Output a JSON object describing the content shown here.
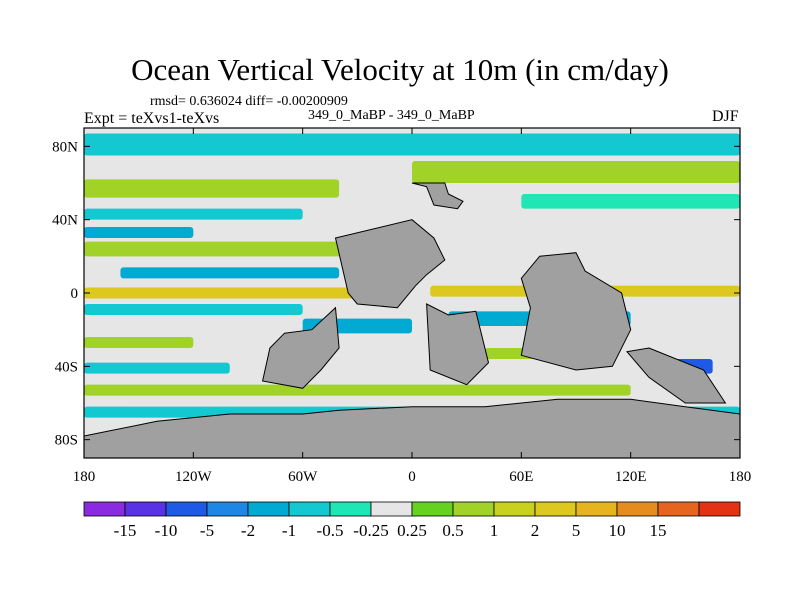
{
  "chart_data": {
    "type": "heatmap",
    "title": "Ocean Vertical Velocity at 10m (in cm/day)",
    "stats_text": "rmsd= 0.636024 diff= -0.00200909",
    "experiment_label": "Expt = teXvs1-teXvs",
    "case_label": "349_0_MaBP - 349_0_MaBP",
    "season": "DJF",
    "x_axis": {
      "range": [
        -180,
        180
      ],
      "ticks": [
        {
          "value": -180,
          "label": "180"
        },
        {
          "value": -120,
          "label": "120W"
        },
        {
          "value": -60,
          "label": "60W"
        },
        {
          "value": 0,
          "label": "0"
        },
        {
          "value": 60,
          "label": "60E"
        },
        {
          "value": 120,
          "label": "120E"
        },
        {
          "value": 180,
          "label": "180"
        }
      ]
    },
    "y_axis": {
      "range": [
        -90,
        90
      ],
      "ticks": [
        {
          "value": 80,
          "label": "80N"
        },
        {
          "value": 40,
          "label": "40N"
        },
        {
          "value": 0,
          "label": "0"
        },
        {
          "value": -40,
          "label": "40S"
        },
        {
          "value": -80,
          "label": "80S"
        }
      ]
    },
    "colorbar": {
      "colors": [
        "#8a2be2",
        "#5a32e6",
        "#1e5ae6",
        "#1e87e6",
        "#00aad2",
        "#14c8d2",
        "#1ee6b4",
        "#e6e6e6",
        "#64d21e",
        "#a0d228",
        "#c8d21e",
        "#dcc81e",
        "#e6b41e",
        "#e68c1e",
        "#e6641e",
        "#e63214"
      ],
      "boundaries": [
        "-15",
        "-10",
        "-5",
        "-2",
        "-1",
        "-0.5",
        "-0.25",
        "0.25",
        "0.5",
        "1",
        "2",
        "5",
        "10",
        "15"
      ]
    },
    "land_color": "#a0a0a0",
    "field_bands": [
      {
        "lon": [
          -180,
          180
        ],
        "lat": [
          75,
          87
        ],
        "value": -0.6
      },
      {
        "lon": [
          -180,
          -40
        ],
        "lat": [
          52,
          62
        ],
        "value": 0.7
      },
      {
        "lon": [
          0,
          180
        ],
        "lat": [
          60,
          72
        ],
        "value": 0.8
      },
      {
        "lon": [
          60,
          180
        ],
        "lat": [
          46,
          54
        ],
        "value": -0.4
      },
      {
        "lon": [
          -180,
          -60
        ],
        "lat": [
          40,
          46
        ],
        "value": -0.7
      },
      {
        "lon": [
          -180,
          -120
        ],
        "lat": [
          30,
          36
        ],
        "value": -1.5
      },
      {
        "lon": [
          -180,
          -20
        ],
        "lat": [
          20,
          28
        ],
        "value": 0.6
      },
      {
        "lon": [
          -160,
          -40
        ],
        "lat": [
          8,
          14
        ],
        "value": -1.2
      },
      {
        "lon": [
          -180,
          -10
        ],
        "lat": [
          -3,
          3
        ],
        "value": 2.5
      },
      {
        "lon": [
          10,
          180
        ],
        "lat": [
          -2,
          4
        ],
        "value": 3
      },
      {
        "lon": [
          -180,
          -60
        ],
        "lat": [
          -12,
          -6
        ],
        "value": -0.6
      },
      {
        "lon": [
          -60,
          0
        ],
        "lat": [
          -22,
          -14
        ],
        "value": -1.1
      },
      {
        "lon": [
          20,
          120
        ],
        "lat": [
          -18,
          -10
        ],
        "value": -1.4
      },
      {
        "lon": [
          -180,
          -120
        ],
        "lat": [
          -30,
          -24
        ],
        "value": 0.7
      },
      {
        "lon": [
          40,
          110
        ],
        "lat": [
          -36,
          -30
        ],
        "value": 0.6
      },
      {
        "lon": [
          -180,
          -100
        ],
        "lat": [
          -44,
          -38
        ],
        "value": -0.7
      },
      {
        "lon": [
          130,
          165
        ],
        "lat": [
          -44,
          -36
        ],
        "value": -6
      },
      {
        "lon": [
          -180,
          120
        ],
        "lat": [
          -56,
          -50
        ],
        "value": 0.7
      },
      {
        "lon": [
          -180,
          180
        ],
        "lat": [
          -68,
          -62
        ],
        "value": -0.6
      }
    ],
    "land_masses": [
      {
        "name": "North Africa / Arabia",
        "polygon": [
          [
            -8,
            -8
          ],
          [
            -30,
            -6
          ],
          [
            -35,
            0
          ],
          [
            -42,
            30
          ],
          [
            0,
            40
          ],
          [
            12,
            30
          ],
          [
            18,
            18
          ],
          [
            8,
            10
          ],
          [
            2,
            4
          ],
          [
            -8,
            -8
          ]
        ]
      },
      {
        "name": "Southern Africa",
        "polygon": [
          [
            8,
            -6
          ],
          [
            20,
            -12
          ],
          [
            35,
            -10
          ],
          [
            42,
            -38
          ],
          [
            30,
            -50
          ],
          [
            10,
            -42
          ],
          [
            8,
            -6
          ]
        ]
      },
      {
        "name": "South America",
        "polygon": [
          [
            -70,
            -22
          ],
          [
            -55,
            -20
          ],
          [
            -42,
            -8
          ],
          [
            -40,
            -30
          ],
          [
            -50,
            -42
          ],
          [
            -60,
            -52
          ],
          [
            -82,
            -48
          ],
          [
            -78,
            -30
          ],
          [
            -70,
            -22
          ]
        ]
      },
      {
        "name": "Europe",
        "polygon": [
          [
            0,
            60
          ],
          [
            8,
            58
          ],
          [
            12,
            48
          ],
          [
            25,
            46
          ],
          [
            28,
            50
          ],
          [
            20,
            54
          ],
          [
            18,
            60
          ],
          [
            0,
            60
          ]
        ]
      },
      {
        "name": "Asia",
        "polygon": [
          [
            70,
            20
          ],
          [
            90,
            22
          ],
          [
            95,
            12
          ],
          [
            115,
            0
          ],
          [
            120,
            -20
          ],
          [
            110,
            -40
          ],
          [
            90,
            -42
          ],
          [
            60,
            -34
          ],
          [
            65,
            -8
          ],
          [
            60,
            8
          ],
          [
            70,
            20
          ]
        ]
      },
      {
        "name": "Australia / Pacific",
        "polygon": [
          [
            130,
            -30
          ],
          [
            160,
            -42
          ],
          [
            172,
            -60
          ],
          [
            150,
            -60
          ],
          [
            130,
            -46
          ],
          [
            118,
            -32
          ],
          [
            130,
            -30
          ]
        ]
      },
      {
        "name": "Antarctica",
        "polygon": [
          [
            -180,
            -78
          ],
          [
            -140,
            -70
          ],
          [
            -100,
            -66
          ],
          [
            -60,
            -66
          ],
          [
            -40,
            -64
          ],
          [
            0,
            -62
          ],
          [
            40,
            -62
          ],
          [
            80,
            -58
          ],
          [
            120,
            -58
          ],
          [
            150,
            -62
          ],
          [
            180,
            -66
          ],
          [
            180,
            -90
          ],
          [
            -180,
            -90
          ],
          [
            -180,
            -78
          ]
        ]
      }
    ]
  }
}
